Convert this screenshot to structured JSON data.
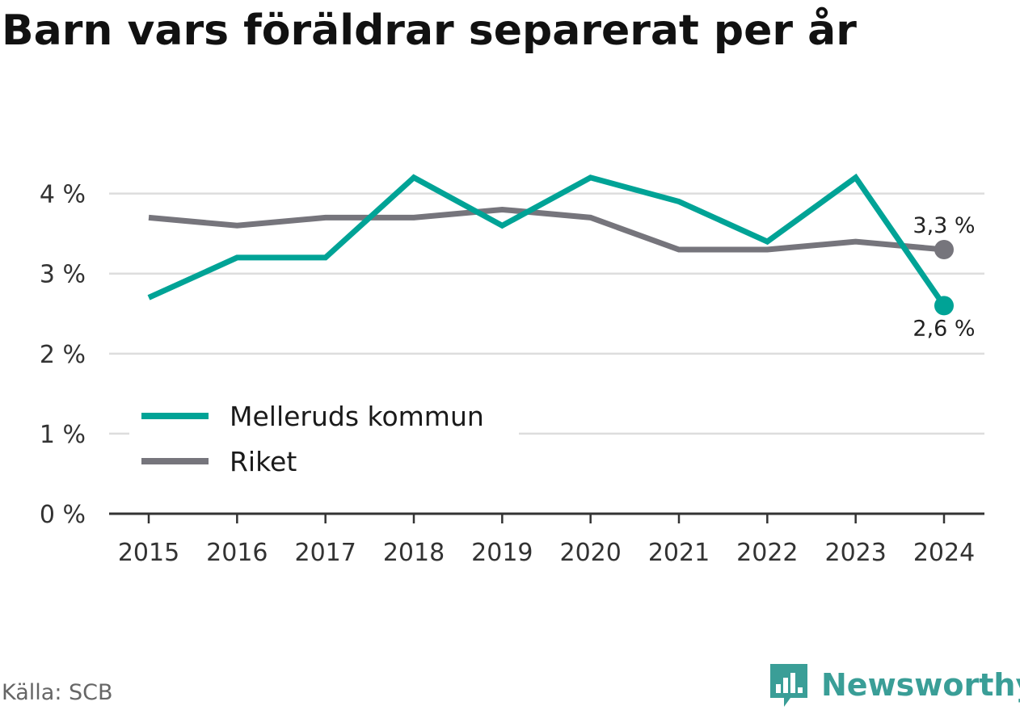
{
  "title": "Barn vars föräldrar separerat per år",
  "source": "Källa: SCB",
  "brand": {
    "name": "Newsworthy",
    "icon": "newsworthy-logo-icon"
  },
  "colors": {
    "primary": "#00a396",
    "secondary": "#76757c",
    "grid": "#dddddd",
    "axis": "#333333",
    "brand": "#3a9e97"
  },
  "chart_data": {
    "type": "line",
    "categories": [
      "2015",
      "2016",
      "2017",
      "2018",
      "2019",
      "2020",
      "2021",
      "2022",
      "2023",
      "2024"
    ],
    "series": [
      {
        "name": "Melleruds kommun",
        "color": "#00a396",
        "values": [
          2.7,
          3.2,
          3.2,
          4.2,
          3.6,
          4.2,
          3.9,
          3.4,
          4.2,
          2.6
        ],
        "end_label": "2,6 %"
      },
      {
        "name": "Riket",
        "color": "#76757c",
        "values": [
          3.7,
          3.6,
          3.7,
          3.7,
          3.8,
          3.7,
          3.3,
          3.3,
          3.4,
          3.3
        ],
        "end_label": "3,3 %"
      }
    ],
    "yticks": [
      0,
      1,
      2,
      3,
      4
    ],
    "ytick_labels": [
      "0 %",
      "1 %",
      "2 %",
      "3 %",
      "4 %"
    ],
    "ylim": [
      0,
      4.4
    ],
    "grid": true,
    "legend_position": "bottom-left"
  }
}
